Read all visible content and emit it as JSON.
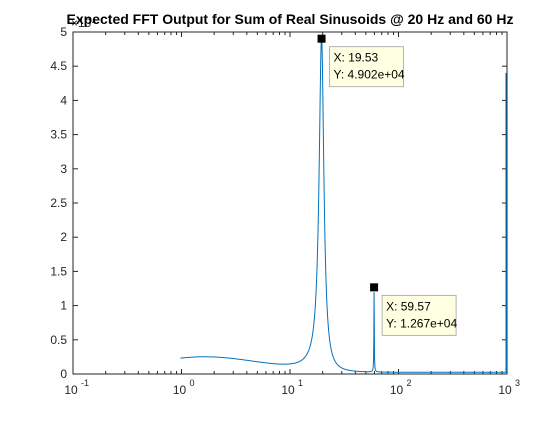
{
  "chart_data": {
    "type": "line",
    "title": "Expected FFT Output for Sum of Real Sinusoids @ 20 Hz and 60 Hz",
    "xlabel": "",
    "ylabel": "",
    "x_scale": "log",
    "xlim": [
      0.1,
      1000
    ],
    "ylim": [
      0,
      50000
    ],
    "y_exponent_label": "×10⁴",
    "x_ticks": [
      {
        "base": "10",
        "exp": "-1",
        "value": 0.1
      },
      {
        "base": "10",
        "exp": "0",
        "value": 1
      },
      {
        "base": "10",
        "exp": "1",
        "value": 10
      },
      {
        "base": "10",
        "exp": "2",
        "value": 100
      },
      {
        "base": "10",
        "exp": "3",
        "value": 1000
      }
    ],
    "y_ticks": [
      {
        "label": "0",
        "value": 0
      },
      {
        "label": "0.5",
        "value": 5000
      },
      {
        "label": "1",
        "value": 10000
      },
      {
        "label": "1.5",
        "value": 15000
      },
      {
        "label": "2",
        "value": 20000
      },
      {
        "label": "2.5",
        "value": 25000
      },
      {
        "label": "3",
        "value": 30000
      },
      {
        "label": "3.5",
        "value": 35000
      },
      {
        "label": "4",
        "value": 40000
      },
      {
        "label": "4.5",
        "value": 45000
      },
      {
        "label": "5",
        "value": 50000
      }
    ],
    "grid": false,
    "series_color": "#0072BD",
    "peaks": [
      {
        "x": 19.53,
        "y": 49020,
        "width": 1.2
      },
      {
        "x": 59.57,
        "y": 12670,
        "width": 0.28
      }
    ],
    "baseline_level": 2300,
    "x_start": 0.977,
    "data_tips": [
      {
        "x": 19.53,
        "y": 49020,
        "line1": "X: 19.53",
        "line2": "Y: 4.902e+04"
      },
      {
        "x": 59.57,
        "y": 12670,
        "line1": "X: 59.57",
        "line2": "Y: 1.267e+04"
      }
    ]
  }
}
